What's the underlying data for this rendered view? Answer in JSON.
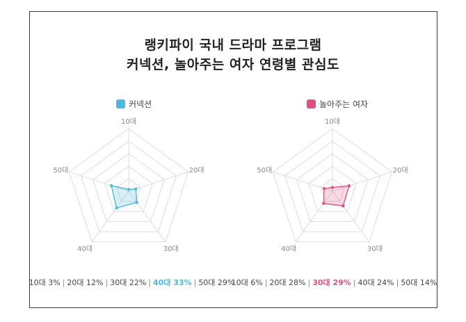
{
  "title_line1": "랭키파이 국내 드라마 프로그램",
  "title_line2": "커넥션, 놀아주는 여자 연령별 관심도",
  "colors": {
    "connection": "#4db8e0",
    "playing_woman": "#e0507e",
    "grid": "#dddddd",
    "frame": "#3a3a3a"
  },
  "chart_data": [
    {
      "type": "radar",
      "series_name": "커넥션",
      "color": "#4db8e0",
      "categories": [
        "10대",
        "20대",
        "30대",
        "40대",
        "50대"
      ],
      "values": [
        3,
        12,
        22,
        33,
        29
      ],
      "highlight_index": 3,
      "footer": [
        {
          "label": "10대",
          "value": "3%"
        },
        {
          "label": "20대",
          "value": "12%"
        },
        {
          "label": "30대",
          "value": "22%"
        },
        {
          "label": "40대",
          "value": "33%"
        },
        {
          "label": "50대",
          "value": "29%"
        }
      ]
    },
    {
      "type": "radar",
      "series_name": "놀아주는 여자",
      "color": "#e0507e",
      "categories": [
        "10대",
        "20대",
        "30대",
        "40대",
        "50대"
      ],
      "values": [
        6,
        28,
        29,
        24,
        14
      ],
      "highlight_index": 2,
      "footer": [
        {
          "label": "10대",
          "value": "6%"
        },
        {
          "label": "20대",
          "value": "28%"
        },
        {
          "label": "30대",
          "value": "29%"
        },
        {
          "label": "40대",
          "value": "24%"
        },
        {
          "label": "50대",
          "value": "14%"
        }
      ]
    }
  ]
}
